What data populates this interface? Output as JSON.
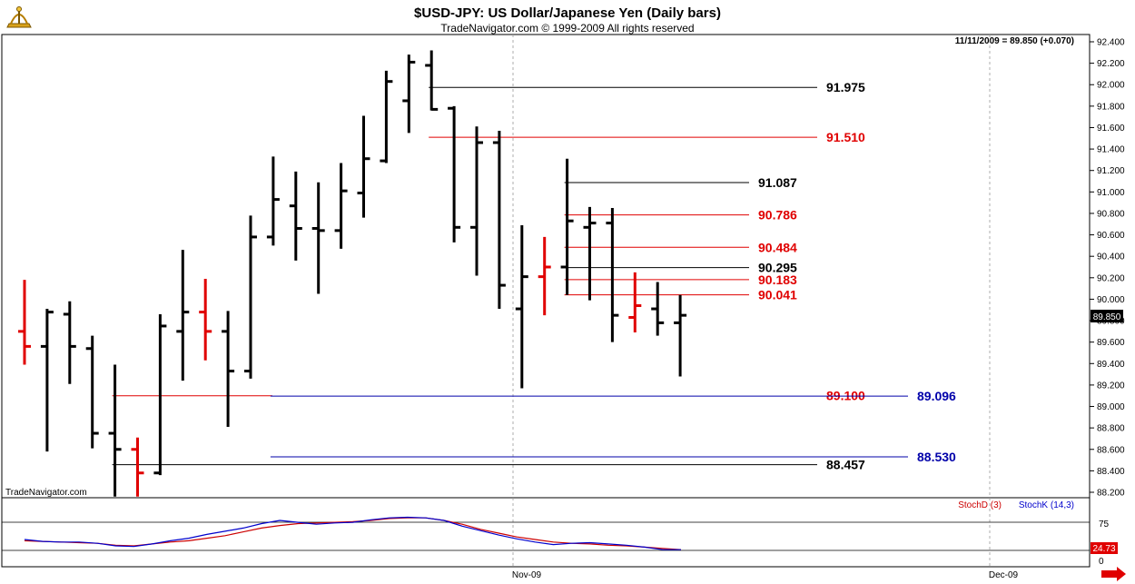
{
  "header": {
    "title": "$USD-JPY:  US Dollar/Japanese Yen  (Daily bars)",
    "subtitle": "TradeNavigator.com © 1999-2009 All rights reserved",
    "last_quote": "11/11/2009 = 89.850 (+0.070)",
    "watermark": "TradeNavigator.com",
    "logo_icon": "sextant-icon",
    "nav_icon": "arrow-right-icon"
  },
  "colors": {
    "up": "#000000",
    "down": "#e00000",
    "stoch_d": "#cc0000",
    "stoch_k": "#0000cc",
    "blue_level": "#0000aa"
  },
  "chart_data": {
    "type": "bar",
    "subtype": "ohlc",
    "symbol": "$USD-JPY",
    "y_ticks": [
      "92.400",
      "92.200",
      "92.000",
      "91.800",
      "91.600",
      "91.400",
      "91.200",
      "91.000",
      "90.800",
      "90.600",
      "90.400",
      "90.200",
      "90.000",
      "89.800",
      "89.600",
      "89.400",
      "89.200",
      "89.000",
      "88.800",
      "88.600",
      "88.400",
      "88.200"
    ],
    "ylim": [
      88.16,
      92.45
    ],
    "last_price": "89.850",
    "x_labels": [
      "Nov-09",
      "Dec-09"
    ],
    "bars": [
      {
        "o": 89.7,
        "h": 90.18,
        "l": 89.39,
        "c": 89.56,
        "color": "down"
      },
      {
        "o": 89.56,
        "h": 89.91,
        "l": 88.58,
        "c": 89.88,
        "color": "up"
      },
      {
        "o": 89.86,
        "h": 89.98,
        "l": 89.21,
        "c": 89.56,
        "color": "up"
      },
      {
        "o": 89.54,
        "h": 89.66,
        "l": 88.61,
        "c": 88.75,
        "color": "up"
      },
      {
        "o": 88.75,
        "h": 89.39,
        "l": 88.16,
        "c": 88.6,
        "color": "up"
      },
      {
        "o": 88.6,
        "h": 88.71,
        "l": 88.16,
        "c": 88.38,
        "color": "down"
      },
      {
        "o": 88.38,
        "h": 89.86,
        "l": 88.36,
        "c": 89.75,
        "color": "up"
      },
      {
        "o": 89.7,
        "h": 90.46,
        "l": 89.24,
        "c": 89.88,
        "color": "up"
      },
      {
        "o": 89.88,
        "h": 90.19,
        "l": 89.43,
        "c": 89.7,
        "color": "down"
      },
      {
        "o": 89.7,
        "h": 89.89,
        "l": 88.81,
        "c": 89.33,
        "color": "up"
      },
      {
        "o": 89.33,
        "h": 90.78,
        "l": 89.26,
        "c": 90.58,
        "color": "up"
      },
      {
        "o": 90.58,
        "h": 91.33,
        "l": 90.5,
        "c": 90.93,
        "color": "up"
      },
      {
        "o": 90.87,
        "h": 91.19,
        "l": 90.36,
        "c": 90.66,
        "color": "up"
      },
      {
        "o": 90.66,
        "h": 91.09,
        "l": 90.05,
        "c": 90.64,
        "color": "up"
      },
      {
        "o": 90.64,
        "h": 91.27,
        "l": 90.47,
        "c": 91.01,
        "color": "up"
      },
      {
        "o": 90.99,
        "h": 91.71,
        "l": 90.76,
        "c": 91.31,
        "color": "up"
      },
      {
        "o": 91.29,
        "h": 92.13,
        "l": 91.27,
        "c": 92.03,
        "color": "up"
      },
      {
        "o": 91.85,
        "h": 92.28,
        "l": 91.55,
        "c": 92.21,
        "color": "up"
      },
      {
        "o": 92.18,
        "h": 92.32,
        "l": 91.76,
        "c": 91.77,
        "color": "up"
      },
      {
        "o": 91.78,
        "h": 91.8,
        "l": 90.53,
        "c": 90.67,
        "color": "up"
      },
      {
        "o": 90.67,
        "h": 91.61,
        "l": 90.22,
        "c": 91.46,
        "color": "up"
      },
      {
        "o": 91.46,
        "h": 91.57,
        "l": 89.91,
        "c": 90.13,
        "color": "up"
      },
      {
        "o": 89.91,
        "h": 90.69,
        "l": 89.17,
        "c": 90.21,
        "color": "up"
      },
      {
        "o": 90.21,
        "h": 90.58,
        "l": 89.85,
        "c": 90.3,
        "color": "down"
      },
      {
        "o": 90.3,
        "h": 91.31,
        "l": 90.04,
        "c": 90.73,
        "color": "up"
      },
      {
        "o": 90.67,
        "h": 90.86,
        "l": 89.99,
        "c": 90.71,
        "color": "up"
      },
      {
        "o": 90.71,
        "h": 90.85,
        "l": 89.6,
        "c": 89.85,
        "color": "up"
      },
      {
        "o": 89.83,
        "h": 90.25,
        "l": 89.69,
        "c": 89.94,
        "color": "down"
      },
      {
        "o": 89.91,
        "h": 90.16,
        "l": 89.66,
        "c": 89.78,
        "color": "up"
      },
      {
        "o": 89.78,
        "h": 90.04,
        "l": 89.28,
        "c": 89.85,
        "color": "up"
      }
    ],
    "levels": [
      {
        "label": "91.975",
        "value": 91.975,
        "color": "#000000",
        "start_bar": 18,
        "label_style": "right"
      },
      {
        "label": "91.510",
        "value": 91.51,
        "color": "#e00000",
        "start_bar": 18,
        "label_style": "right"
      },
      {
        "label": "91.087",
        "value": 91.087,
        "color": "#000000",
        "start_bar": 24,
        "label_style": "right"
      },
      {
        "label": "90.786",
        "value": 90.786,
        "color": "#e00000",
        "start_bar": 24,
        "label_style": "right"
      },
      {
        "label": "90.484",
        "value": 90.484,
        "color": "#e00000",
        "start_bar": 24,
        "label_style": "right"
      },
      {
        "label": "90.295",
        "value": 90.295,
        "color": "#000000",
        "start_bar": 24,
        "label_style": "right"
      },
      {
        "label": "90.183",
        "value": 90.183,
        "color": "#e00000",
        "start_bar": 24,
        "label_style": "right"
      },
      {
        "label": "90.041",
        "value": 90.041,
        "color": "#e00000",
        "start_bar": 24,
        "label_style": "right"
      },
      {
        "label": "89.100",
        "value": 89.1,
        "color": "#e00000",
        "start_bar": 4,
        "label_style": "mid_strike"
      },
      {
        "label": "89.096",
        "value": 89.096,
        "color": "#0000aa",
        "start_bar": 11,
        "label_style": "far"
      },
      {
        "label": "88.530",
        "value": 88.53,
        "color": "#0000aa",
        "start_bar": 11,
        "label_style": "far"
      },
      {
        "label": "88.457",
        "value": 88.457,
        "color": "#000000",
        "start_bar": 4,
        "label_style": "mid"
      }
    ],
    "stochastic": {
      "legend_d": "StochD (3)",
      "legend_k": "StochK (14,3)",
      "ticks": [
        "75",
        "0"
      ],
      "last_value": "24.73",
      "range": [
        0,
        100
      ],
      "stoch_d": [
        38,
        37,
        36,
        35,
        34,
        31,
        30,
        33,
        36,
        38,
        42,
        46,
        52,
        58,
        62,
        65,
        66,
        67,
        68,
        70,
        73,
        74,
        74,
        70,
        64,
        56,
        50,
        44,
        40,
        36,
        34,
        33,
        31,
        30,
        28,
        26,
        24
      ],
      "stoch_k": [
        40,
        37,
        36,
        36,
        34,
        30,
        29,
        33,
        38,
        42,
        48,
        53,
        58,
        65,
        70,
        67,
        64,
        66,
        67,
        71,
        74,
        75,
        74,
        70,
        61,
        54,
        47,
        41,
        36,
        32,
        34,
        35,
        33,
        31,
        28,
        24,
        24
      ]
    }
  }
}
